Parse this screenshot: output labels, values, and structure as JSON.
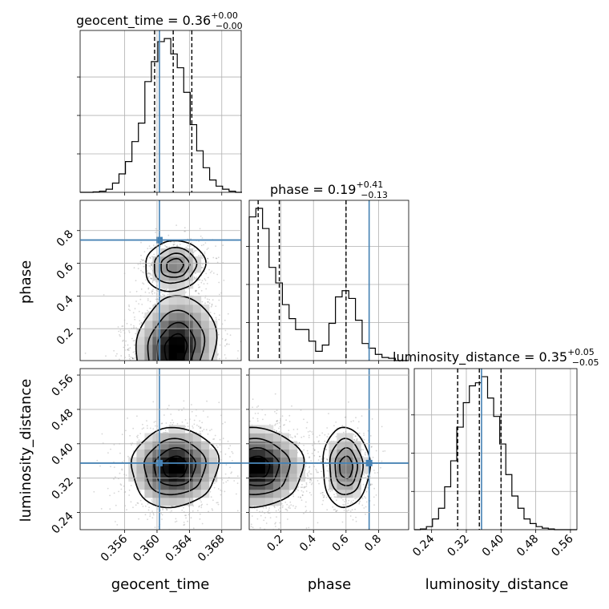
{
  "chart_data": {
    "type": "corner",
    "parameters": [
      "geocent_time",
      "phase",
      "luminosity_distance"
    ],
    "axis_labels": [
      "geocent_time",
      "phase",
      "luminosity_distance"
    ],
    "titles": [
      {
        "param": "geocent_time",
        "name": "geocent_time",
        "median": "0.36",
        "plus": "+0.00",
        "minus": "−0.00"
      },
      {
        "param": "phase",
        "name": "phase",
        "median": "0.19",
        "plus": "+0.41",
        "minus": "−0.13"
      },
      {
        "param": "luminosity_distance",
        "name": "luminosity_distance",
        "median": "0.35",
        "plus": "+0.05",
        "minus": "−0.05"
      }
    ],
    "ranges": {
      "geocent_time": [
        0.3505,
        0.3704
      ],
      "phase": [
        0.005,
        0.985
      ],
      "luminosity_distance": [
        0.2,
        0.575
      ]
    },
    "ticks": {
      "geocent_time": [
        "0.356",
        "0.360",
        "0.364",
        "0.368"
      ],
      "phase": [
        "0.2",
        "0.4",
        "0.6",
        "0.8"
      ],
      "luminosity_distance": [
        "0.24",
        "0.32",
        "0.40",
        "0.48",
        "0.56"
      ]
    },
    "truths": {
      "geocent_time": 0.3603,
      "phase": 0.742,
      "luminosity_distance": 0.355
    },
    "quantiles": {
      "geocent_time": [
        0.3597,
        0.362,
        0.3643
      ],
      "phase": [
        0.06,
        0.19,
        0.6
      ],
      "luminosity_distance": [
        0.3,
        0.35,
        0.4
      ]
    },
    "histograms": {
      "geocent_time": {
        "edges": [
          0.3505,
          0.3513,
          0.3521,
          0.3529,
          0.3537,
          0.3545,
          0.3553,
          0.3561,
          0.3569,
          0.3577,
          0.3585,
          0.3593,
          0.3601,
          0.3609,
          0.3617,
          0.3625,
          0.3633,
          0.3641,
          0.3649,
          0.3657,
          0.3665,
          0.3673,
          0.3681,
          0.3689,
          0.3697,
          0.3705
        ],
        "counts": [
          0.0,
          0.0,
          0.003,
          0.007,
          0.02,
          0.06,
          0.12,
          0.2,
          0.33,
          0.45,
          0.72,
          0.85,
          0.98,
          1.0,
          0.9,
          0.81,
          0.65,
          0.44,
          0.27,
          0.16,
          0.08,
          0.04,
          0.02,
          0.007,
          0.0
        ]
      },
      "phase": {
        "edges": [
          0.005,
          0.046,
          0.087,
          0.127,
          0.168,
          0.209,
          0.25,
          0.29,
          0.331,
          0.372,
          0.413,
          0.454,
          0.495,
          0.535,
          0.576,
          0.617,
          0.658,
          0.699,
          0.739,
          0.78,
          0.821,
          0.862,
          0.903,
          0.944,
          0.985
        ],
        "counts": [
          0.925,
          0.98,
          0.85,
          0.6,
          0.5,
          0.36,
          0.27,
          0.2,
          0.2,
          0.125,
          0.06,
          0.1,
          0.24,
          0.41,
          0.45,
          0.4,
          0.26,
          0.11,
          0.08,
          0.04,
          0.02,
          0.015,
          0.0,
          0.0
        ]
      },
      "luminosity_distance": {
        "edges": [
          0.2,
          0.214,
          0.228,
          0.242,
          0.256,
          0.27,
          0.284,
          0.298,
          0.313,
          0.327,
          0.341,
          0.355,
          0.369,
          0.383,
          0.397,
          0.411,
          0.425,
          0.439,
          0.453,
          0.467,
          0.481,
          0.495,
          0.509,
          0.523,
          0.537,
          0.551,
          0.575
        ],
        "counts": [
          0.0,
          0.005,
          0.02,
          0.07,
          0.14,
          0.28,
          0.45,
          0.67,
          0.83,
          0.94,
          0.96,
          1.0,
          0.86,
          0.74,
          0.56,
          0.36,
          0.22,
          0.14,
          0.07,
          0.04,
          0.02,
          0.01,
          0.005,
          0.0,
          0.0,
          0.0
        ]
      }
    },
    "joint_2d": [
      {
        "x": "geocent_time",
        "y": "phase",
        "modes": [
          {
            "cx": 0.3623,
            "cy": 0.075,
            "sx": 0.0024,
            "sy": 0.16,
            "corr": 0.15,
            "weight": 1.0,
            "cut_low": 0.005
          },
          {
            "cx": 0.3622,
            "cy": 0.585,
            "sx": 0.0018,
            "sy": 0.075,
            "corr": 0.1,
            "weight": 0.45
          }
        ]
      },
      {
        "x": "geocent_time",
        "y": "luminosity_distance",
        "modes": [
          {
            "cx": 0.3622,
            "cy": 0.345,
            "sx": 0.0026,
            "sy": 0.045,
            "corr": 0.05,
            "weight": 1.0
          }
        ]
      },
      {
        "x": "phase",
        "y": "luminosity_distance",
        "modes": [
          {
            "cx": 0.05,
            "cy": 0.345,
            "sx": 0.14,
            "sy": 0.045,
            "corr": 0.0,
            "weight": 1.0,
            "cut_low": 0.005
          },
          {
            "cx": 0.6,
            "cy": 0.345,
            "sx": 0.07,
            "sy": 0.045,
            "corr": 0.0,
            "weight": 0.5
          }
        ]
      }
    ],
    "colors": {
      "truth": "#4682b4",
      "hist": "#000000",
      "grid": "#b0b0b0",
      "scatter": "#000000"
    },
    "grid": true
  }
}
